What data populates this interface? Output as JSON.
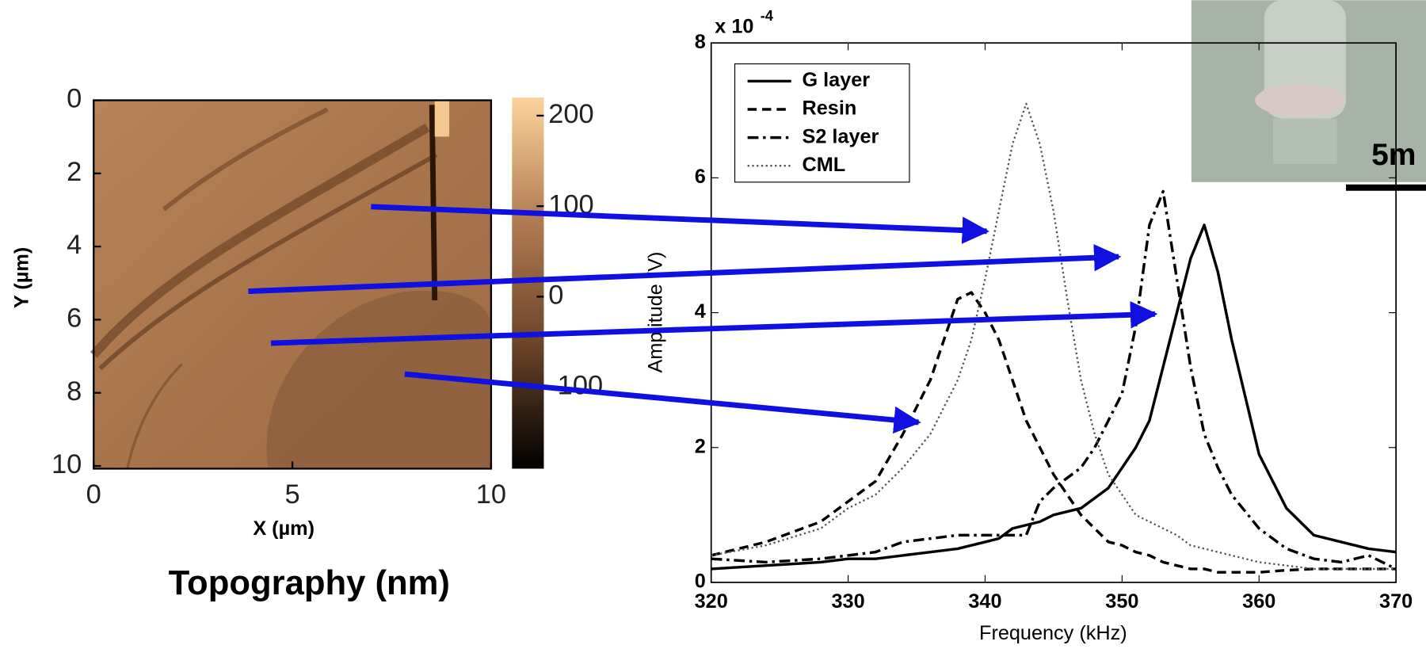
{
  "chart_data": [
    {
      "type": "image",
      "title": "Topography (nm)",
      "xlabel": "X (µm)",
      "ylabel": "Y (µm)",
      "xlim": [
        0,
        10
      ],
      "ylim": [
        0,
        10
      ],
      "xticks": [
        0,
        5,
        10
      ],
      "yticks": [
        0,
        2,
        4,
        6,
        8,
        10
      ],
      "colorbar": {
        "lim": [
          -190,
          220
        ],
        "ticks": [
          200,
          100,
          0,
          -100
        ],
        "colormap": [
          "#000000",
          "#6b4428",
          "#b07b52",
          "#fcd49c"
        ]
      }
    },
    {
      "type": "line",
      "xlabel": "Frequency (kHz)",
      "ylabel": "Amplitude (V)",
      "y_multiplier": {
        "base": "x 10",
        "exponent": "-4"
      },
      "xlim": [
        320,
        370
      ],
      "ylim": [
        0,
        8
      ],
      "xticks": [
        320,
        330,
        340,
        350,
        360,
        370
      ],
      "yticks": [
        0,
        2,
        4,
        6,
        8
      ],
      "legend": "upper left",
      "x": [
        320,
        324,
        328,
        330,
        332,
        334,
        336,
        338,
        339,
        340,
        341,
        342,
        343,
        344,
        345,
        346,
        347,
        348,
        349,
        350,
        351,
        352,
        353,
        354,
        355,
        356,
        357,
        358,
        360,
        362,
        364,
        366,
        368,
        370
      ],
      "series": [
        {
          "name": "G layer",
          "color": "#000000",
          "style": "solid",
          "values": [
            0.2,
            0.25,
            0.3,
            0.35,
            0.35,
            0.4,
            0.45,
            0.5,
            0.55,
            0.6,
            0.65,
            0.8,
            0.85,
            0.9,
            1.0,
            1.05,
            1.1,
            1.25,
            1.4,
            1.7,
            2.0,
            2.4,
            3.2,
            4.0,
            4.8,
            5.3,
            4.6,
            3.6,
            1.9,
            1.1,
            0.7,
            0.6,
            0.5,
            0.45
          ]
        },
        {
          "name": "Resin",
          "color": "#000000",
          "style": "dashed",
          "values": [
            0.4,
            0.6,
            0.9,
            1.2,
            1.5,
            2.2,
            3.0,
            4.2,
            4.3,
            4.0,
            3.6,
            3.0,
            2.4,
            2.0,
            1.6,
            1.3,
            1.0,
            0.8,
            0.6,
            0.55,
            0.45,
            0.4,
            0.3,
            0.25,
            0.2,
            0.2,
            0.15,
            0.15,
            0.15,
            0.18,
            0.2,
            0.2,
            0.2,
            0.2
          ]
        },
        {
          "name": "S2 layer",
          "color": "#000000",
          "style": "dashdot",
          "values": [
            0.35,
            0.3,
            0.35,
            0.4,
            0.45,
            0.6,
            0.65,
            0.7,
            0.7,
            0.7,
            0.7,
            0.7,
            0.7,
            1.2,
            1.4,
            1.55,
            1.7,
            2.0,
            2.4,
            2.8,
            3.8,
            5.3,
            5.8,
            4.5,
            3.2,
            2.2,
            1.7,
            1.3,
            0.8,
            0.5,
            0.35,
            0.3,
            0.4,
            0.2
          ]
        },
        {
          "name": "CML",
          "color": "#555555",
          "style": "dotted",
          "values": [
            0.4,
            0.55,
            0.8,
            1.1,
            1.3,
            1.7,
            2.2,
            3.0,
            3.6,
            4.5,
            5.5,
            6.5,
            7.1,
            6.5,
            5.5,
            4.2,
            3.0,
            2.2,
            1.6,
            1.3,
            1.0,
            0.9,
            0.8,
            0.7,
            0.55,
            0.5,
            0.45,
            0.4,
            0.3,
            0.25,
            0.2,
            0.2,
            0.2,
            0.2
          ]
        }
      ]
    }
  ],
  "inset": {
    "scale_label": "5m"
  }
}
